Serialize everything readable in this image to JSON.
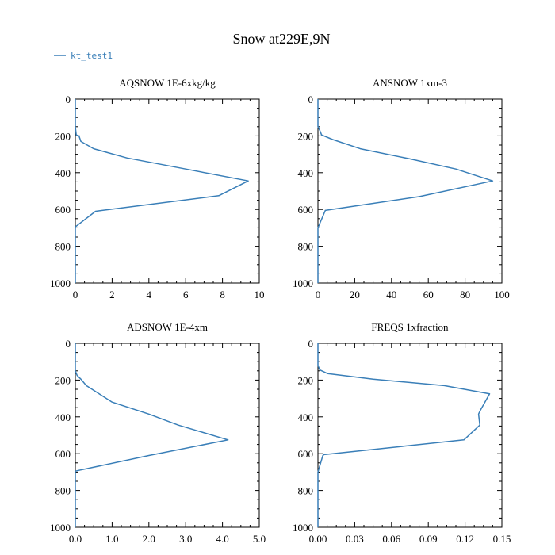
{
  "figure": {
    "title": "Snow at229E,9N",
    "legend": {
      "label": "kt_test1",
      "color": "#3a7fb8",
      "placement": "top-left"
    }
  },
  "chart_data": [
    {
      "type": "line",
      "title": "AQSNOW  1E-6xkg/kg",
      "xlim": [
        0,
        10
      ],
      "ylim": [
        1000,
        0
      ],
      "xticks": [
        0,
        2,
        4,
        6,
        8,
        10
      ],
      "xtick_labels": [
        "0",
        "2",
        "4",
        "6",
        "8",
        "10"
      ],
      "yticks": [
        0,
        200,
        400,
        600,
        800,
        1000
      ],
      "ytick_labels": [
        "0",
        "200",
        "400",
        "600",
        "800",
        "1000"
      ],
      "series": [
        {
          "name": "kt_test1",
          "x": [
            0,
            0,
            0.05,
            0.2,
            0.3,
            1.0,
            2.8,
            6.0,
            9.4,
            7.8,
            1.1,
            0,
            0
          ],
          "y": [
            0,
            150,
            195,
            200,
            230,
            270,
            320,
            380,
            445,
            525,
            610,
            695,
            1000
          ]
        }
      ]
    },
    {
      "type": "line",
      "title": "ANSNOW  1xm-3",
      "xlim": [
        0,
        100
      ],
      "ylim": [
        1000,
        0
      ],
      "xticks": [
        0,
        20,
        40,
        60,
        80,
        100
      ],
      "xtick_labels": [
        "0",
        "20",
        "40",
        "60",
        "80",
        "100"
      ],
      "yticks": [
        0,
        200,
        400,
        600,
        800,
        1000
      ],
      "ytick_labels": [
        "0",
        "200",
        "400",
        "600",
        "800",
        "1000"
      ],
      "series": [
        {
          "name": "kt_test1",
          "x": [
            0,
            0,
            1,
            2,
            8,
            23,
            50,
            75,
            95,
            55,
            4,
            0,
            0
          ],
          "y": [
            0,
            150,
            170,
            195,
            220,
            270,
            325,
            380,
            445,
            530,
            605,
            700,
            1000
          ]
        }
      ]
    },
    {
      "type": "line",
      "title": "ADSNOW  1E-4xm",
      "xlim": [
        0,
        5
      ],
      "ylim": [
        1000,
        0
      ],
      "xticks": [
        0,
        1,
        2,
        3,
        4,
        5
      ],
      "xtick_labels": [
        "0.0",
        "1.0",
        "2.0",
        "3.0",
        "4.0",
        "5.0"
      ],
      "yticks": [
        0,
        200,
        400,
        600,
        800,
        1000
      ],
      "ytick_labels": [
        "0",
        "200",
        "400",
        "600",
        "800",
        "1000"
      ],
      "series": [
        {
          "name": "kt_test1",
          "x": [
            0,
            0,
            0.05,
            0.15,
            0.3,
            1.0,
            2.0,
            2.8,
            4.15,
            2.0,
            0,
            0
          ],
          "y": [
            0,
            150,
            175,
            195,
            230,
            320,
            385,
            445,
            525,
            610,
            695,
            1000
          ]
        }
      ]
    },
    {
      "type": "line",
      "title": "FREQS  1xfraction",
      "xlim": [
        0,
        0.15
      ],
      "ylim": [
        1000,
        0
      ],
      "xticks": [
        0,
        0.03,
        0.06,
        0.09,
        0.12,
        0.15
      ],
      "xtick_labels": [
        "0.00",
        "0.03",
        "0.06",
        "0.09",
        "0.12",
        "0.15"
      ],
      "yticks": [
        0,
        200,
        400,
        600,
        800,
        1000
      ],
      "ytick_labels": [
        "0",
        "200",
        "400",
        "600",
        "800",
        "1000"
      ],
      "series": [
        {
          "name": "kt_test1",
          "x": [
            0,
            0,
            0.0015,
            0.008,
            0.045,
            0.103,
            0.14,
            0.132,
            0.131,
            0.132,
            0.119,
            0.005,
            0.004,
            0,
            0
          ],
          "y": [
            0,
            120,
            145,
            165,
            195,
            230,
            275,
            370,
            385,
            445,
            525,
            605,
            610,
            700,
            1000
          ]
        }
      ]
    }
  ]
}
